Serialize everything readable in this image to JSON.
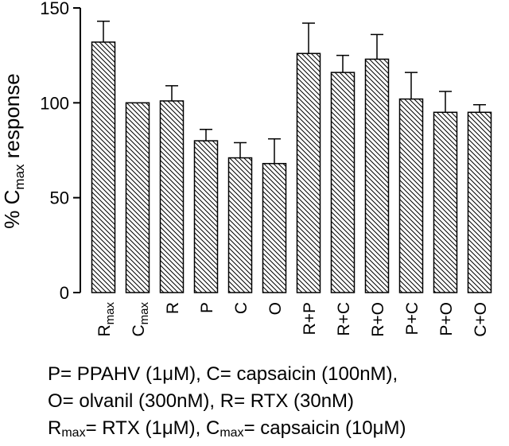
{
  "chart_data": {
    "type": "bar",
    "ylabel": "% C",
    "ylabel_sub": "max",
    "ylabel_suffix": " response",
    "ylim": [
      0,
      150
    ],
    "yticks": [
      "0",
      "50",
      "100",
      "150"
    ],
    "ytick_values": [
      0,
      50,
      100,
      150
    ],
    "grid": false,
    "bar_fill": "diagonal-hatch",
    "bar_color": "#000000",
    "categories": [
      {
        "label": "R",
        "sub": "max"
      },
      {
        "label": "C",
        "sub": "max"
      },
      {
        "label": "R",
        "sub": ""
      },
      {
        "label": "P",
        "sub": ""
      },
      {
        "label": "C",
        "sub": ""
      },
      {
        "label": "O",
        "sub": ""
      },
      {
        "label": "R+P",
        "sub": ""
      },
      {
        "label": "R+C",
        "sub": ""
      },
      {
        "label": "R+O",
        "sub": ""
      },
      {
        "label": "P+C",
        "sub": ""
      },
      {
        "label": "P+O",
        "sub": ""
      },
      {
        "label": "C+O",
        "sub": ""
      }
    ],
    "values": [
      132,
      100,
      101,
      80,
      71,
      68,
      126,
      116,
      123,
      102,
      95,
      95
    ],
    "errors": [
      11,
      0,
      8,
      6,
      8,
      13,
      16,
      9,
      13,
      14,
      11,
      4
    ]
  },
  "legend": {
    "line1": "P= PPAHV (1μM), C= capsaicin (100nM),",
    "line2": "O= olvanil (300nM), R= RTX (30nM)",
    "line3": [
      {
        "text": "R",
        "sub": "max"
      },
      {
        "text": "= RTX (1μM), C",
        "sub": "max"
      },
      {
        "text": "= capsaicin (10μM)",
        "sub": ""
      }
    ]
  }
}
